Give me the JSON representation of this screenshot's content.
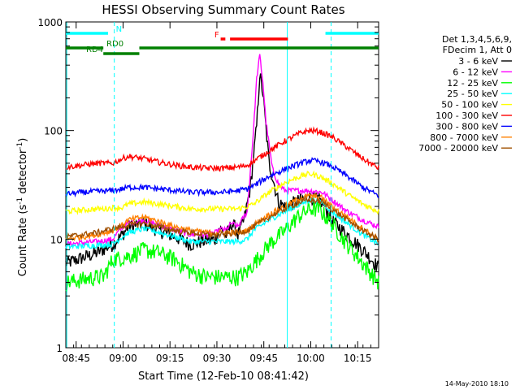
{
  "chart_data": {
    "type": "line",
    "title": "HESSI Observing Summary Count Rates",
    "xlabel": "Start Time (12-Feb-10 08:41:42)",
    "ylabel_main": "Count Rate (s",
    "ylabel_sup1": "-1",
    "ylabel_mid": " detector",
    "ylabel_sup2": "-1",
    "ylabel_end": ")",
    "yscale": "log",
    "xlim_min": [
      0,
      100
    ],
    "ylim": [
      1,
      1000
    ],
    "x_ticks": [
      {
        "min": 3.3,
        "label": "08:45"
      },
      {
        "min": 18.3,
        "label": "09:00"
      },
      {
        "min": 33.3,
        "label": "09:15"
      },
      {
        "min": 48.3,
        "label": "09:30"
      },
      {
        "min": 63.3,
        "label": "09:45"
      },
      {
        "min": 78.3,
        "label": "10:00"
      },
      {
        "min": 93.3,
        "label": "10:15"
      }
    ],
    "y_ticks": [
      {
        "value": 1,
        "label": "1"
      },
      {
        "value": 10,
        "label": "10"
      },
      {
        "value": 100,
        "label": "100"
      },
      {
        "value": 1000,
        "label": "1000"
      }
    ],
    "legend": {
      "header1": "Det 1,3,4,5,6,9,",
      "header2": "FDecim 1, Att 0",
      "placement": "right"
    },
    "series": [
      {
        "name": "3 - 6 keV",
        "color": "#000000",
        "points": [
          [
            0,
            6
          ],
          [
            10,
            7.5
          ],
          [
            15,
            9
          ],
          [
            18,
            11
          ],
          [
            20,
            13
          ],
          [
            25,
            14
          ],
          [
            30,
            12
          ],
          [
            35,
            10.5
          ],
          [
            40,
            9
          ],
          [
            43,
            9.5
          ],
          [
            48,
            10
          ],
          [
            49,
            12.5
          ],
          [
            50,
            12
          ],
          [
            51,
            10.5
          ],
          [
            52,
            12
          ],
          [
            53,
            14
          ],
          [
            54,
            13
          ],
          [
            55,
            11
          ],
          [
            57,
            15
          ],
          [
            59,
            30
          ],
          [
            61,
            110
          ],
          [
            62,
            330
          ],
          [
            63,
            220
          ],
          [
            65,
            50
          ],
          [
            68,
            22
          ],
          [
            70,
            20
          ],
          [
            75,
            23
          ],
          [
            78,
            25
          ],
          [
            82,
            22
          ],
          [
            85,
            15
          ],
          [
            90,
            11
          ],
          [
            95,
            8
          ],
          [
            100,
            5.5
          ]
        ]
      },
      {
        "name": "6 - 12 keV",
        "color": "#ff00ff",
        "points": [
          [
            0,
            9
          ],
          [
            10,
            9.5
          ],
          [
            15,
            10
          ],
          [
            18,
            13
          ],
          [
            20,
            14
          ],
          [
            25,
            15
          ],
          [
            30,
            13.5
          ],
          [
            35,
            12
          ],
          [
            40,
            11
          ],
          [
            45,
            11
          ],
          [
            48,
            11.5
          ],
          [
            50,
            12.5
          ],
          [
            51,
            12
          ],
          [
            53,
            14
          ],
          [
            55,
            13
          ],
          [
            58,
            18
          ],
          [
            60,
            100
          ],
          [
            61,
            300
          ],
          [
            62,
            490
          ],
          [
            63,
            280
          ],
          [
            64,
            120
          ],
          [
            66,
            45
          ],
          [
            68,
            32
          ],
          [
            70,
            28
          ],
          [
            74,
            28
          ],
          [
            78,
            28
          ],
          [
            82,
            27
          ],
          [
            86,
            22
          ],
          [
            90,
            18
          ],
          [
            95,
            15
          ],
          [
            100,
            13
          ]
        ]
      },
      {
        "name": "12 - 25 keV",
        "color": "#00ff00",
        "points": [
          [
            0,
            4
          ],
          [
            10,
            4.5
          ],
          [
            12,
            4.5
          ],
          [
            15,
            6.5
          ],
          [
            20,
            7
          ],
          [
            25,
            8
          ],
          [
            30,
            7.5
          ],
          [
            35,
            6.5
          ],
          [
            40,
            5
          ],
          [
            45,
            4.5
          ],
          [
            50,
            4.5
          ],
          [
            55,
            4.5
          ],
          [
            58,
            5
          ],
          [
            60,
            6
          ],
          [
            62,
            7
          ],
          [
            65,
            9
          ],
          [
            70,
            12
          ],
          [
            74,
            16
          ],
          [
            78,
            19
          ],
          [
            81,
            19
          ],
          [
            85,
            14
          ],
          [
            90,
            9
          ],
          [
            95,
            6
          ],
          [
            100,
            4
          ]
        ]
      },
      {
        "name": "25 - 50 keV",
        "color": "#00ffff",
        "points": [
          [
            0,
            8.5
          ],
          [
            10,
            8.8
          ],
          [
            15,
            9
          ],
          [
            18,
            10.5
          ],
          [
            20,
            11.5
          ],
          [
            25,
            12.5
          ],
          [
            30,
            11.5
          ],
          [
            35,
            10.5
          ],
          [
            40,
            9.5
          ],
          [
            45,
            9.5
          ],
          [
            50,
            9.5
          ],
          [
            55,
            9.5
          ],
          [
            58,
            10
          ],
          [
            60,
            12
          ],
          [
            65,
            15
          ],
          [
            70,
            18
          ],
          [
            75,
            21
          ],
          [
            78,
            23
          ],
          [
            82,
            22
          ],
          [
            85,
            18
          ],
          [
            90,
            14
          ],
          [
            95,
            11
          ],
          [
            100,
            9
          ]
        ]
      },
      {
        "name": "50 - 100 keV",
        "color": "#ffff00",
        "points": [
          [
            0,
            18
          ],
          [
            5,
            18.5
          ],
          [
            10,
            19
          ],
          [
            12,
            19
          ],
          [
            15,
            19.5
          ],
          [
            18,
            19.5
          ],
          [
            20,
            21
          ],
          [
            25,
            22
          ],
          [
            30,
            21
          ],
          [
            35,
            20
          ],
          [
            40,
            19
          ],
          [
            45,
            19
          ],
          [
            50,
            19
          ],
          [
            55,
            19
          ],
          [
            58,
            20
          ],
          [
            60,
            21
          ],
          [
            65,
            27
          ],
          [
            70,
            33
          ],
          [
            75,
            38
          ],
          [
            78,
            40
          ],
          [
            81,
            38
          ],
          [
            85,
            33
          ],
          [
            90,
            26
          ],
          [
            95,
            21
          ],
          [
            100,
            18
          ]
        ]
      },
      {
        "name": "100 - 300 keV",
        "color": "#ff0000",
        "points": [
          [
            0,
            46
          ],
          [
            5,
            48
          ],
          [
            10,
            50
          ],
          [
            12,
            50
          ],
          [
            15,
            50
          ],
          [
            18,
            55
          ],
          [
            20,
            58
          ],
          [
            25,
            55
          ],
          [
            30,
            51
          ],
          [
            35,
            48
          ],
          [
            40,
            46
          ],
          [
            45,
            45
          ],
          [
            50,
            45
          ],
          [
            55,
            46
          ],
          [
            58,
            48
          ],
          [
            60,
            52
          ],
          [
            65,
            65
          ],
          [
            70,
            80
          ],
          [
            75,
            95
          ],
          [
            78,
            100
          ],
          [
            81,
            98
          ],
          [
            85,
            88
          ],
          [
            90,
            70
          ],
          [
            95,
            55
          ],
          [
            100,
            45
          ]
        ]
      },
      {
        "name": "300 - 800 keV",
        "color": "#0000ff",
        "points": [
          [
            0,
            26
          ],
          [
            5,
            27
          ],
          [
            10,
            27.5
          ],
          [
            15,
            28
          ],
          [
            18,
            29
          ],
          [
            20,
            30
          ],
          [
            25,
            30
          ],
          [
            30,
            29
          ],
          [
            35,
            28
          ],
          [
            40,
            27
          ],
          [
            45,
            27
          ],
          [
            50,
            27
          ],
          [
            55,
            28
          ],
          [
            58,
            29
          ],
          [
            60,
            31
          ],
          [
            65,
            38
          ],
          [
            70,
            44
          ],
          [
            75,
            50
          ],
          [
            78,
            53
          ],
          [
            81,
            52
          ],
          [
            85,
            47
          ],
          [
            90,
            38
          ],
          [
            95,
            30
          ],
          [
            100,
            25
          ]
        ]
      },
      {
        "name": "800 - 7000 keV",
        "color": "#ff8000",
        "points": [
          [
            0,
            10
          ],
          [
            5,
            10.5
          ],
          [
            10,
            11
          ],
          [
            15,
            12
          ],
          [
            18,
            13.5
          ],
          [
            20,
            15
          ],
          [
            25,
            16
          ],
          [
            30,
            14.5
          ],
          [
            35,
            13
          ],
          [
            40,
            12
          ],
          [
            45,
            11.5
          ],
          [
            50,
            11.5
          ],
          [
            55,
            11.5
          ],
          [
            58,
            12
          ],
          [
            60,
            13.5
          ],
          [
            65,
            17
          ],
          [
            70,
            20
          ],
          [
            75,
            24
          ],
          [
            78,
            25
          ],
          [
            82,
            24
          ],
          [
            85,
            20
          ],
          [
            90,
            16
          ],
          [
            95,
            12.5
          ],
          [
            100,
            10
          ]
        ]
      },
      {
        "name": "7000 - 20000 keV",
        "color": "#a05000",
        "points": [
          [
            0,
            10.5
          ],
          [
            10,
            11.5
          ],
          [
            15,
            12.5
          ],
          [
            18,
            13
          ],
          [
            20,
            13.5
          ],
          [
            25,
            14
          ],
          [
            30,
            13
          ],
          [
            35,
            12
          ],
          [
            40,
            11.5
          ],
          [
            45,
            11
          ],
          [
            50,
            11
          ],
          [
            55,
            11.5
          ],
          [
            58,
            12
          ],
          [
            60,
            13
          ],
          [
            65,
            16
          ],
          [
            70,
            19
          ],
          [
            75,
            22
          ],
          [
            78,
            23
          ],
          [
            82,
            22
          ],
          [
            85,
            19
          ],
          [
            90,
            15
          ],
          [
            95,
            12
          ],
          [
            100,
            10
          ]
        ]
      }
    ],
    "flag_bars": [
      {
        "label": "N",
        "color": "#00ffff",
        "segments": [
          [
            0,
            13.5
          ],
          [
            83,
            100
          ]
        ],
        "label_at": 16
      },
      {
        "label": "F",
        "color": "#ff0000",
        "segments": [
          [
            49.5,
            51
          ],
          [
            52.5,
            71
          ]
        ],
        "label_at": 47.5
      },
      {
        "label": "RD0",
        "color": "#008000",
        "segments": [
          [
            0,
            12
          ]
        ],
        "label_at": 13
      },
      {
        "label": "RD4",
        "color": "#008000",
        "segments": [
          [
            12,
            23.5
          ]
        ],
        "label_at": 6.5
      },
      {
        "label": "",
        "color": "#008000",
        "segments": [
          [
            23.5,
            100
          ]
        ],
        "label_at": null
      }
    ],
    "vlines": [
      {
        "min": 0.3,
        "color": "#00ffff",
        "style": "solid"
      },
      {
        "min": 15.5,
        "color": "#00ffff",
        "style": "dashed"
      },
      {
        "min": 70.8,
        "color": "#00ffff",
        "style": "solid"
      },
      {
        "min": 84.8,
        "color": "#00ffff",
        "style": "dashed"
      }
    ]
  },
  "footer_timestamp": "14-May-2010 18:10"
}
